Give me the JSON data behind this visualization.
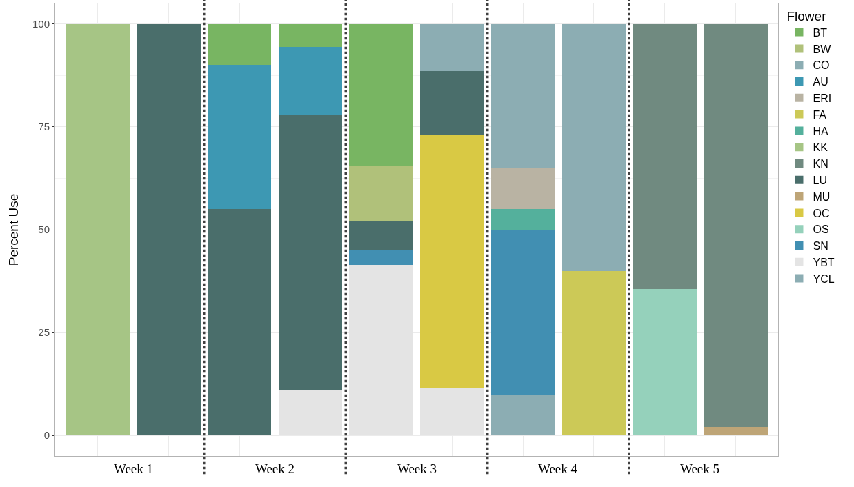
{
  "chart_data": {
    "type": "bar",
    "stacked": true,
    "ylabel": "Percent Use",
    "legend_title": "Flower",
    "legend": "right",
    "grid": true,
    "categories": [
      null,
      null,
      null,
      null,
      null,
      null,
      null,
      null,
      null,
      null
    ],
    "annotations": [
      "Week 1",
      "Week 2",
      "Week 3",
      "Week 4",
      "Week 5"
    ],
    "ylim": [
      -5,
      105
    ],
    "yticks": [
      0,
      25,
      50,
      75,
      100
    ],
    "series": [
      {
        "name": "YCL",
        "color": "#8cadb3",
        "values": [
          null,
          null,
          null,
          null,
          null,
          null,
          10,
          null,
          null,
          null
        ]
      },
      {
        "name": "YBT",
        "color": "#e4e4e4",
        "values": [
          null,
          null,
          null,
          11,
          41.5,
          11.5,
          null,
          null,
          null,
          null
        ]
      },
      {
        "name": "SN",
        "color": "#418fb2",
        "values": [
          null,
          null,
          null,
          null,
          3.5,
          null,
          40,
          null,
          null,
          null
        ]
      },
      {
        "name": "OS",
        "color": "#95d1bb",
        "values": [
          null,
          null,
          null,
          null,
          null,
          null,
          null,
          null,
          35.5,
          null
        ]
      },
      {
        "name": "OC",
        "color": "#d9c944",
        "values": [
          null,
          null,
          null,
          null,
          null,
          61.5,
          null,
          null,
          null,
          null
        ]
      },
      {
        "name": "MU",
        "color": "#bea577",
        "values": [
          null,
          null,
          null,
          null,
          null,
          null,
          null,
          null,
          null,
          2
        ]
      },
      {
        "name": "LU",
        "color": "#4a6e6b",
        "values": [
          null,
          100,
          55,
          67,
          7,
          15.5,
          null,
          null,
          null,
          null
        ]
      },
      {
        "name": "KN",
        "color": "#708a80",
        "values": [
          null,
          null,
          null,
          null,
          null,
          null,
          null,
          null,
          64.5,
          98
        ]
      },
      {
        "name": "KK",
        "color": "#a6c585",
        "values": [
          100,
          null,
          null,
          null,
          null,
          null,
          null,
          null,
          null,
          null
        ]
      },
      {
        "name": "HA",
        "color": "#54b09c",
        "values": [
          null,
          null,
          null,
          null,
          null,
          null,
          5,
          null,
          null,
          null
        ]
      },
      {
        "name": "FA",
        "color": "#ccc957",
        "values": [
          null,
          null,
          null,
          null,
          null,
          null,
          null,
          40,
          null,
          null
        ]
      },
      {
        "name": "ERI",
        "color": "#b9b3a3",
        "values": [
          null,
          null,
          null,
          null,
          null,
          null,
          10,
          null,
          null,
          null
        ]
      },
      {
        "name": "AU",
        "color": "#3d98b3",
        "values": [
          null,
          null,
          35,
          16.5,
          null,
          null,
          null,
          null,
          null,
          null
        ]
      },
      {
        "name": "CO",
        "color": "#8cadb3",
        "values": [
          null,
          null,
          null,
          null,
          null,
          11.5,
          35,
          60,
          null,
          null
        ]
      },
      {
        "name": "BW",
        "color": "#b0c17a",
        "values": [
          null,
          null,
          null,
          null,
          13.5,
          null,
          null,
          null,
          null,
          null
        ]
      },
      {
        "name": "BT",
        "color": "#78b562",
        "values": [
          null,
          null,
          10,
          5.5,
          34.5,
          null,
          null,
          null,
          null,
          null
        ]
      }
    ]
  }
}
